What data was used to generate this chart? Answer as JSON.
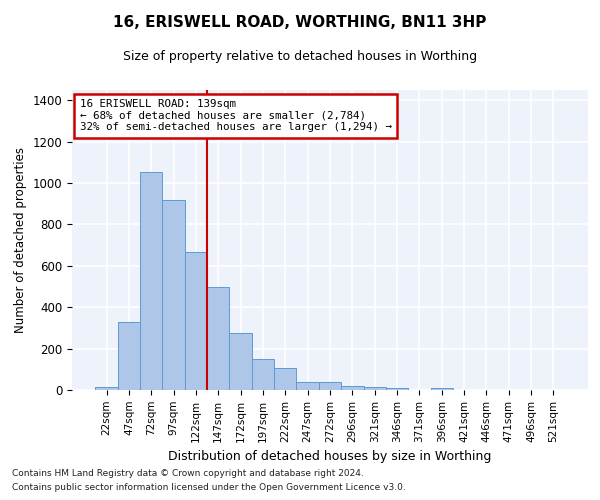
{
  "title_line1": "16, ERISWELL ROAD, WORTHING, BN11 3HP",
  "title_line2": "Size of property relative to detached houses in Worthing",
  "xlabel": "Distribution of detached houses by size in Worthing",
  "ylabel": "Number of detached properties",
  "categories": [
    "22sqm",
    "47sqm",
    "72sqm",
    "97sqm",
    "122sqm",
    "147sqm",
    "172sqm",
    "197sqm",
    "222sqm",
    "247sqm",
    "272sqm",
    "296sqm",
    "321sqm",
    "346sqm",
    "371sqm",
    "396sqm",
    "421sqm",
    "446sqm",
    "471sqm",
    "496sqm",
    "521sqm"
  ],
  "values": [
    15,
    330,
    1055,
    920,
    665,
    500,
    275,
    150,
    105,
    40,
    40,
    20,
    15,
    12,
    0,
    12,
    0,
    0,
    0,
    0,
    0
  ],
  "bar_color": "#aec6e8",
  "bar_edge_color": "#5b9bd5",
  "background_color": "#eef2fa",
  "grid_color": "#ffffff",
  "vline_color": "#cc0000",
  "vline_index": 4.5,
  "annotation_title": "16 ERISWELL ROAD: 139sqm",
  "annotation_line1": "← 68% of detached houses are smaller (2,784)",
  "annotation_line2": "32% of semi-detached houses are larger (1,294) →",
  "annotation_box_color": "#ffffff",
  "annotation_box_edge": "#cc0000",
  "footnote1": "Contains HM Land Registry data © Crown copyright and database right 2024.",
  "footnote2": "Contains public sector information licensed under the Open Government Licence v3.0.",
  "ylim": [
    0,
    1450
  ],
  "yticks": [
    0,
    200,
    400,
    600,
    800,
    1000,
    1200,
    1400
  ]
}
